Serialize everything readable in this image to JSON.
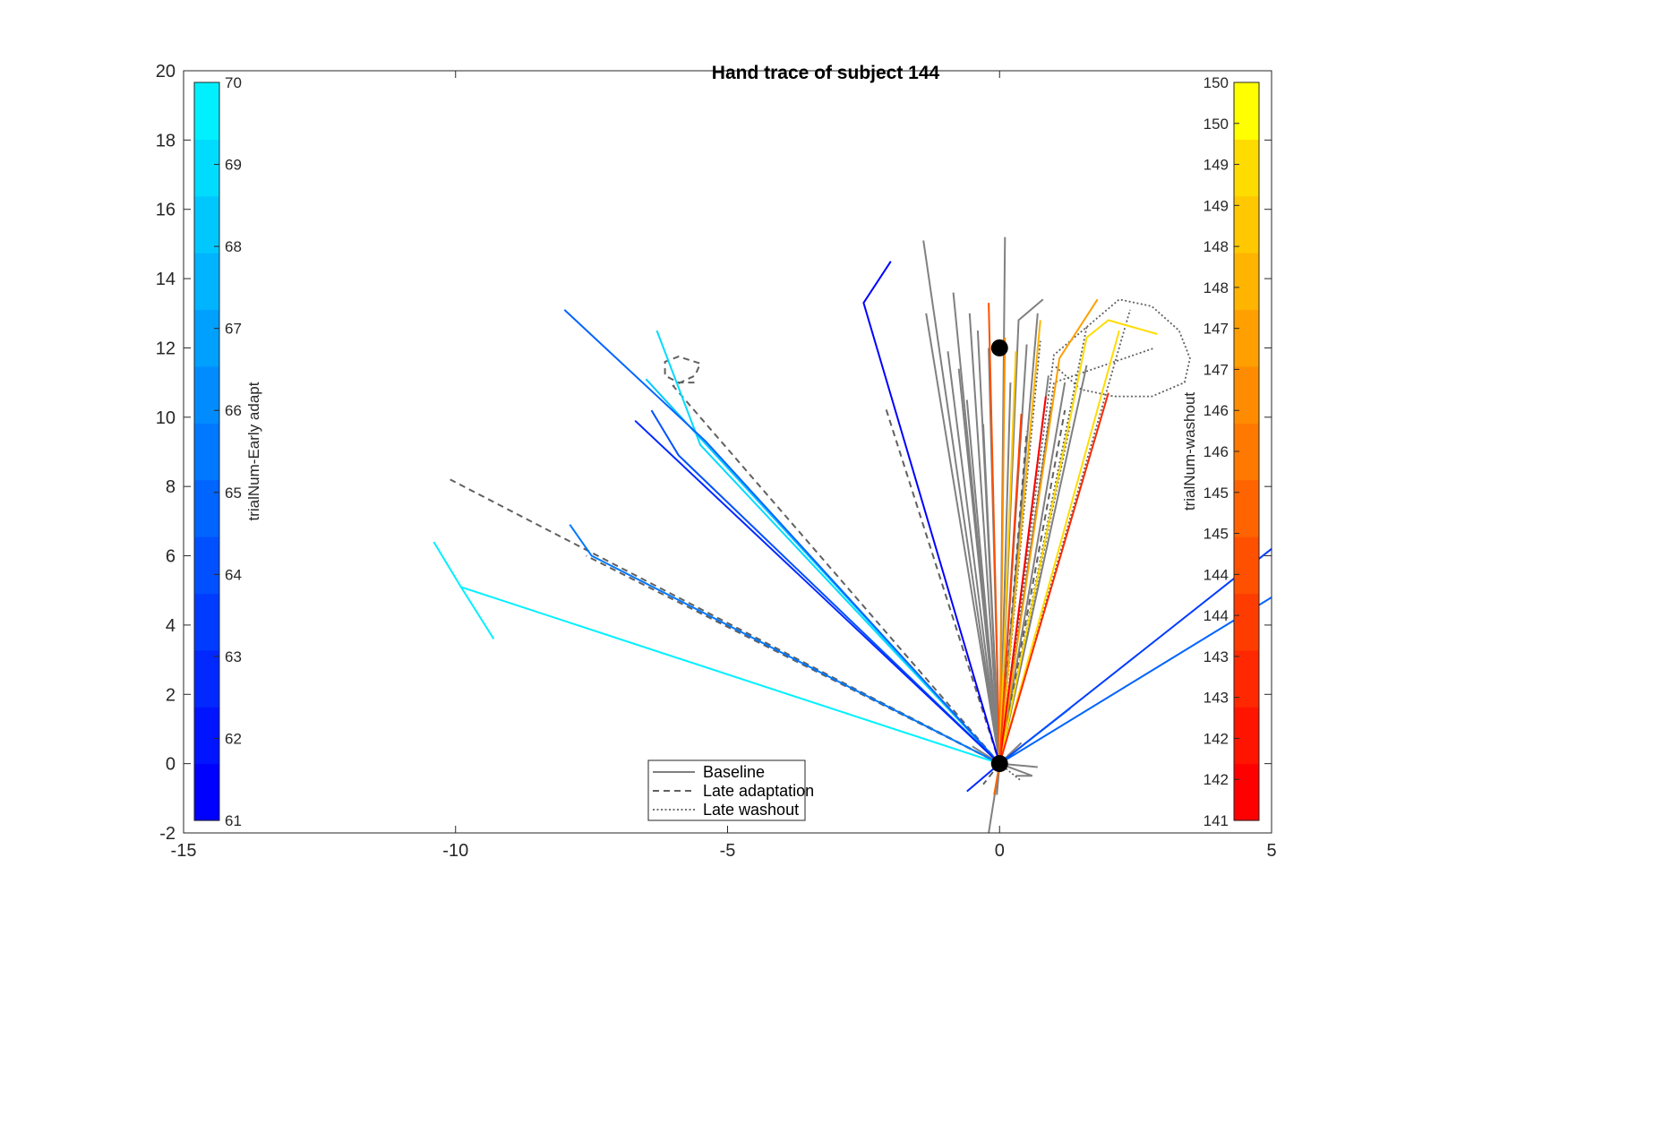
{
  "chart_data": {
    "type": "line",
    "title": "Hand trace of subject 144",
    "xlabel": "",
    "ylabel": "",
    "xlim": [
      -15,
      5
    ],
    "ylim": [
      -2,
      20
    ],
    "xticks": [
      -15,
      -10,
      -5,
      0,
      5
    ],
    "yticks": [
      -2,
      0,
      2,
      4,
      6,
      8,
      10,
      12,
      14,
      16,
      18,
      20
    ],
    "grid": false,
    "targets": [
      {
        "name": "start",
        "x": 0,
        "y": 0
      },
      {
        "name": "target",
        "x": 0,
        "y": 12
      }
    ],
    "colorbar_left": {
      "label": "trialNum-Early adapt",
      "placement": "inside-left",
      "min": 61,
      "max": 70,
      "ticks": [
        "61",
        "62",
        "63",
        "64",
        "65",
        "66",
        "67",
        "68",
        "69",
        "70"
      ],
      "colors": [
        "#0000ff",
        "#0014ff",
        "#0028ff",
        "#003cff",
        "#0050ff",
        "#0064ff",
        "#0078ff",
        "#008cff",
        "#00a0ff",
        "#00b4ff",
        "#00c8ff",
        "#00dcff",
        "#00f0ff"
      ]
    },
    "colorbar_right": {
      "label": "trialNum-washout",
      "placement": "inside-right",
      "min": 141,
      "max": 150,
      "ticks": [
        "141",
        "142",
        "142",
        "143",
        "143",
        "144",
        "144",
        "145",
        "145",
        "146",
        "146",
        "147",
        "147",
        "148",
        "148",
        "149",
        "149",
        "150",
        "150"
      ],
      "colors": [
        "#ff0000",
        "#ff1400",
        "#ff2800",
        "#ff3c00",
        "#ff5000",
        "#ff6400",
        "#ff7800",
        "#ff8c00",
        "#ffa000",
        "#ffb400",
        "#ffc800",
        "#ffdc00",
        "#ffff00"
      ]
    },
    "legend": {
      "placement": "bottom-center",
      "entries": [
        {
          "label": "Baseline",
          "style": "solid",
          "color": "#808080"
        },
        {
          "label": "Late adaptation",
          "style": "dashed",
          "color": "#606060"
        },
        {
          "label": "Late washout",
          "style": "dotted",
          "color": "#606060"
        }
      ]
    },
    "series": [
      {
        "group": "Baseline",
        "style": "solid",
        "color": "#808080",
        "points": [
          [
            0,
            0
          ],
          [
            0.1,
            15.2
          ]
        ]
      },
      {
        "group": "Baseline",
        "style": "solid",
        "color": "#808080",
        "points": [
          [
            0,
            0
          ],
          [
            -1.4,
            15.1
          ]
        ]
      },
      {
        "group": "Baseline",
        "style": "solid",
        "color": "#808080",
        "points": [
          [
            0,
            0
          ],
          [
            -1.35,
            13.0
          ]
        ]
      },
      {
        "group": "Baseline",
        "style": "solid",
        "color": "#808080",
        "points": [
          [
            0,
            0
          ],
          [
            -0.85,
            13.6
          ]
        ]
      },
      {
        "group": "Baseline",
        "style": "solid",
        "color": "#808080",
        "points": [
          [
            0,
            0
          ],
          [
            -0.55,
            13.0
          ]
        ]
      },
      {
        "group": "Baseline",
        "style": "solid",
        "color": "#808080",
        "points": [
          [
            0,
            0
          ],
          [
            -0.4,
            12.5
          ]
        ]
      },
      {
        "group": "Baseline",
        "style": "solid",
        "color": "#808080",
        "points": [
          [
            0,
            0
          ],
          [
            -0.2,
            12.0
          ]
        ]
      },
      {
        "group": "Baseline",
        "style": "solid",
        "color": "#808080",
        "points": [
          [
            0,
            0
          ],
          [
            0.35,
            12.8
          ],
          [
            0.8,
            13.4
          ]
        ]
      },
      {
        "group": "Baseline",
        "style": "solid",
        "color": "#808080",
        "points": [
          [
            0,
            0
          ],
          [
            0.7,
            13.0
          ]
        ]
      },
      {
        "group": "Baseline",
        "style": "solid",
        "color": "#808080",
        "points": [
          [
            0,
            0
          ],
          [
            0.5,
            12.1
          ]
        ]
      },
      {
        "group": "Baseline",
        "style": "solid",
        "color": "#808080",
        "points": [
          [
            0,
            0
          ],
          [
            0.9,
            11.2
          ]
        ]
      },
      {
        "group": "Baseline",
        "style": "solid",
        "color": "#808080",
        "points": [
          [
            0,
            0
          ],
          [
            1.2,
            11.0
          ]
        ]
      },
      {
        "group": "Baseline",
        "style": "solid",
        "color": "#808080",
        "points": [
          [
            0,
            0
          ],
          [
            1.6,
            11.5
          ]
        ]
      },
      {
        "group": "Baseline",
        "style": "solid",
        "color": "#808080",
        "points": [
          [
            0,
            0
          ],
          [
            -0.75,
            11.4
          ]
        ]
      },
      {
        "group": "Baseline",
        "style": "solid",
        "color": "#808080",
        "points": [
          [
            0,
            0
          ],
          [
            -0.95,
            11.9
          ]
        ]
      },
      {
        "group": "Baseline",
        "style": "solid",
        "color": "#808080",
        "points": [
          [
            0,
            0
          ],
          [
            -0.6,
            10.5
          ]
        ]
      },
      {
        "group": "Baseline",
        "style": "solid",
        "color": "#808080",
        "points": [
          [
            0,
            0
          ],
          [
            -0.3,
            9.8
          ]
        ]
      },
      {
        "group": "Baseline",
        "style": "solid",
        "color": "#808080",
        "points": [
          [
            0,
            0
          ],
          [
            0.2,
            11.0
          ]
        ]
      },
      {
        "group": "Baseline",
        "style": "solid",
        "color": "#808080",
        "points": [
          [
            0,
            0
          ],
          [
            0.95,
            10.3
          ]
        ]
      },
      {
        "group": "Baseline",
        "style": "solid",
        "color": "#808080",
        "points": [
          [
            0,
            0
          ],
          [
            0.6,
            -0.35
          ],
          [
            0.3,
            -0.35
          ]
        ]
      },
      {
        "group": "Baseline",
        "style": "solid",
        "color": "#808080",
        "points": [
          [
            0,
            0
          ],
          [
            0.7,
            -0.1
          ]
        ]
      },
      {
        "group": "Baseline",
        "style": "solid",
        "color": "#808080",
        "points": [
          [
            0,
            0
          ],
          [
            -0.2,
            -2.0
          ]
        ]
      },
      {
        "group": "Baseline",
        "style": "solid",
        "color": "#808080",
        "points": [
          [
            0,
            0
          ],
          [
            -0.5,
            0.5
          ]
        ]
      },
      {
        "group": "Baseline",
        "style": "solid",
        "color": "#808080",
        "points": [
          [
            0,
            0
          ],
          [
            0.4,
            0.6
          ]
        ]
      },
      {
        "group": "Baseline",
        "style": "solid",
        "color": "#808080",
        "points": [
          [
            0,
            0
          ],
          [
            -0.05,
            -0.9
          ]
        ]
      },
      {
        "group": "Late adaptation",
        "style": "dashed",
        "color": "#606060",
        "points": [
          [
            0,
            0
          ],
          [
            -10.1,
            8.2
          ]
        ]
      },
      {
        "group": "Late adaptation",
        "style": "dashed",
        "color": "#606060",
        "points": [
          [
            0,
            0
          ],
          [
            -2.1,
            10.3
          ]
        ]
      },
      {
        "group": "Late adaptation",
        "style": "dashed",
        "color": "#606060",
        "points": [
          [
            0,
            0
          ],
          [
            -6.0,
            10.9
          ],
          [
            -5.6,
            11.2
          ],
          [
            -5.5,
            11.55
          ],
          [
            -5.9,
            11.75
          ],
          [
            -6.15,
            11.6
          ],
          [
            -6.15,
            11.2
          ],
          [
            -5.9,
            11.0
          ],
          [
            -5.6,
            11.0
          ]
        ]
      },
      {
        "group": "Late adaptation",
        "style": "dashed",
        "color": "#606060",
        "points": [
          [
            0,
            0
          ],
          [
            -7.6,
            6.0
          ]
        ]
      },
      {
        "group": "Late adaptation",
        "style": "dashed",
        "color": "#606060",
        "points": [
          [
            0,
            0
          ],
          [
            1.2,
            10.2
          ]
        ]
      },
      {
        "group": "Late adaptation",
        "style": "dashed",
        "color": "#606060",
        "points": [
          [
            0,
            0
          ],
          [
            0.5,
            9.6
          ]
        ]
      },
      {
        "group": "Late adaptation",
        "style": "dashed",
        "color": "#606060",
        "points": [
          [
            0,
            0
          ],
          [
            -0.3,
            -0.6
          ]
        ]
      },
      {
        "group": "Late washout",
        "style": "dotted",
        "color": "#606060",
        "points": [
          [
            0,
            0
          ],
          [
            1.0,
            11.8
          ],
          [
            1.6,
            12.6
          ],
          [
            2.2,
            13.4
          ],
          [
            2.8,
            13.2
          ],
          [
            3.3,
            12.5
          ],
          [
            3.5,
            11.7
          ],
          [
            3.4,
            11.0
          ],
          [
            2.8,
            10.6
          ],
          [
            2.1,
            10.6
          ],
          [
            1.5,
            10.8
          ],
          [
            1.0,
            11.5
          ]
        ]
      },
      {
        "group": "Late washout",
        "style": "dotted",
        "color": "#606060",
        "points": [
          [
            0,
            0
          ],
          [
            1.0,
            11.0
          ],
          [
            2.85,
            12.0
          ]
        ]
      },
      {
        "group": "Late washout",
        "style": "dotted",
        "color": "#606060",
        "points": [
          [
            0,
            0
          ],
          [
            1.6,
            12.6
          ]
        ]
      },
      {
        "group": "Late washout",
        "style": "dotted",
        "color": "#606060",
        "points": [
          [
            0,
            0
          ],
          [
            2.4,
            13.1
          ]
        ]
      },
      {
        "group": "Late washout",
        "style": "dotted",
        "color": "#606060",
        "points": [
          [
            0,
            0
          ],
          [
            0.75,
            12.2
          ]
        ]
      },
      {
        "group": "Late washout",
        "style": "dotted",
        "color": "#606060",
        "points": [
          [
            0,
            0
          ],
          [
            1.3,
            9.8
          ]
        ]
      },
      {
        "group": "Late washout",
        "style": "dotted",
        "color": "#606060",
        "points": [
          [
            0,
            0
          ],
          [
            0.4,
            -0.5
          ]
        ]
      },
      {
        "group": "Early adapt",
        "style": "solid",
        "color": "#00f0ff",
        "points": [
          [
            0,
            0
          ],
          [
            -9.9,
            5.1
          ],
          [
            -10.4,
            6.4
          ]
        ]
      },
      {
        "group": "Early adapt",
        "style": "solid",
        "color": "#00f0ff",
        "points": [
          [
            -9.9,
            5.1
          ],
          [
            -9.3,
            3.6
          ]
        ]
      },
      {
        "group": "Early adapt",
        "style": "solid",
        "color": "#00dcff",
        "points": [
          [
            0,
            0
          ],
          [
            -5.5,
            9.2
          ],
          [
            -6.3,
            12.5
          ]
        ]
      },
      {
        "group": "Early adapt",
        "style": "solid",
        "color": "#00c8ff",
        "points": [
          [
            0,
            0
          ],
          [
            -6.5,
            11.1
          ]
        ]
      },
      {
        "group": "Early adapt",
        "style": "solid",
        "color": "#0078ff",
        "points": [
          [
            0,
            0
          ],
          [
            -7.5,
            6.0
          ],
          [
            -7.9,
            6.9
          ]
        ]
      },
      {
        "group": "Early adapt",
        "style": "solid",
        "color": "#0064ff",
        "points": [
          [
            0,
            0
          ],
          [
            -5.4,
            9.3
          ],
          [
            -8.0,
            13.1
          ]
        ]
      },
      {
        "group": "Early adapt",
        "style": "solid",
        "color": "#0050ff",
        "points": [
          [
            0,
            0
          ],
          [
            -5.9,
            8.9
          ],
          [
            -6.4,
            10.2
          ]
        ]
      },
      {
        "group": "Early adapt",
        "style": "solid",
        "color": "#0028ff",
        "points": [
          [
            0,
            0
          ],
          [
            -6.7,
            9.9
          ]
        ]
      },
      {
        "group": "Early adapt",
        "style": "solid",
        "color": "#0000ff",
        "points": [
          [
            0,
            0
          ],
          [
            -2.5,
            13.3
          ],
          [
            -2.0,
            14.5
          ]
        ]
      },
      {
        "group": "Early adapt",
        "style": "solid",
        "color": "#003cff",
        "points": [
          [
            0,
            0
          ],
          [
            5,
            6.2
          ]
        ]
      },
      {
        "group": "Early adapt",
        "style": "solid",
        "color": "#0064ff",
        "points": [
          [
            0,
            0
          ],
          [
            5,
            4.8
          ]
        ]
      },
      {
        "group": "Early adapt",
        "style": "solid",
        "color": "#0050ff",
        "points": [
          [
            0,
            0
          ],
          [
            1.3,
            1.6
          ]
        ]
      },
      {
        "group": "Early adapt",
        "style": "solid",
        "color": "#0028ff",
        "points": [
          [
            0,
            0
          ],
          [
            -0.6,
            -0.8
          ]
        ]
      },
      {
        "group": "Washout",
        "style": "solid",
        "color": "#ff5000",
        "points": [
          [
            0,
            0
          ],
          [
            -0.2,
            13.3
          ]
        ]
      },
      {
        "group": "Washout",
        "style": "solid",
        "color": "#ff8c00",
        "points": [
          [
            0,
            0
          ],
          [
            0.1,
            12.3
          ]
        ]
      },
      {
        "group": "Washout",
        "style": "solid",
        "color": "#ffc800",
        "points": [
          [
            0,
            0
          ],
          [
            0.3,
            11.9
          ]
        ]
      },
      {
        "group": "Washout",
        "style": "solid",
        "color": "#ffb400",
        "points": [
          [
            0,
            0
          ],
          [
            0.75,
            12.8
          ]
        ]
      },
      {
        "group": "Washout",
        "style": "solid",
        "color": "#ffa000",
        "points": [
          [
            0,
            0
          ],
          [
            1.1,
            11.7
          ],
          [
            1.8,
            13.4
          ]
        ]
      },
      {
        "group": "Washout",
        "style": "solid",
        "color": "#ffdc00",
        "points": [
          [
            0,
            0
          ],
          [
            1.6,
            12.3
          ],
          [
            2.0,
            12.8
          ],
          [
            2.9,
            12.4
          ]
        ]
      },
      {
        "group": "Washout",
        "style": "solid",
        "color": "#ffdc00",
        "points": [
          [
            0,
            0
          ],
          [
            2.2,
            12.5
          ]
        ]
      },
      {
        "group": "Washout",
        "style": "solid",
        "color": "#ff2800",
        "points": [
          [
            0,
            0
          ],
          [
            2.0,
            10.7
          ]
        ]
      },
      {
        "group": "Washout",
        "style": "solid",
        "color": "#ff0000",
        "points": [
          [
            0,
            0
          ],
          [
            0.85,
            10.6
          ]
        ]
      },
      {
        "group": "Washout",
        "style": "solid",
        "color": "#ff3c00",
        "points": [
          [
            0,
            0
          ],
          [
            0.4,
            10.1
          ]
        ]
      },
      {
        "group": "Washout",
        "style": "solid",
        "color": "#ff6400",
        "points": [
          [
            0,
            0
          ],
          [
            -0.1,
            -0.9
          ]
        ]
      }
    ]
  }
}
